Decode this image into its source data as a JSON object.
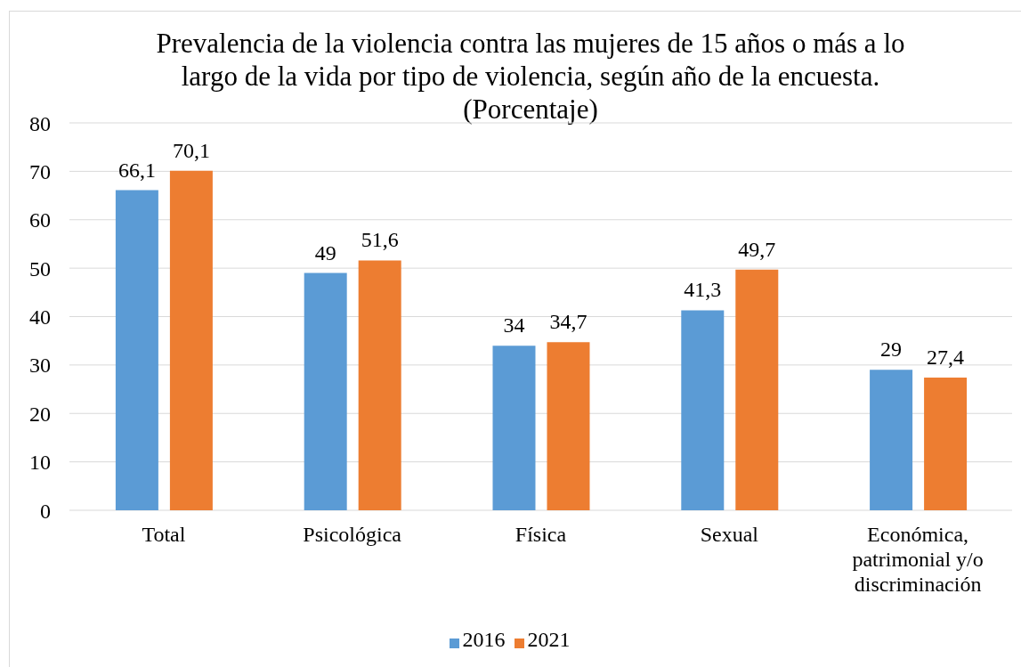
{
  "chart_data": {
    "type": "bar",
    "title": "Prevalencia de la violencia contra las mujeres de 15 años o más a lo largo de la vida por tipo de violencia, según año de la encuesta. (Porcentaje)",
    "categories": [
      "Total",
      "Psicológica",
      "Física",
      "Sexual",
      "Económica, patrimonial y/o discriminación"
    ],
    "series": [
      {
        "name": "2016",
        "color": "#5b9bd5",
        "values": [
          66.1,
          49,
          34,
          41.3,
          29
        ],
        "value_labels": [
          "66,1",
          "49",
          "34",
          "41,3",
          "29"
        ]
      },
      {
        "name": "2021",
        "color": "#ed7d31",
        "values": [
          70.1,
          51.6,
          34.7,
          49.7,
          27.4
        ],
        "value_labels": [
          "70,1",
          "51,6",
          "34,7",
          "49,7",
          "27,4"
        ]
      }
    ],
    "ylim": [
      0,
      80
    ],
    "yticks": [
      0,
      10,
      20,
      30,
      40,
      50,
      60,
      70,
      80
    ],
    "grid": "y",
    "legend": "bottom"
  }
}
